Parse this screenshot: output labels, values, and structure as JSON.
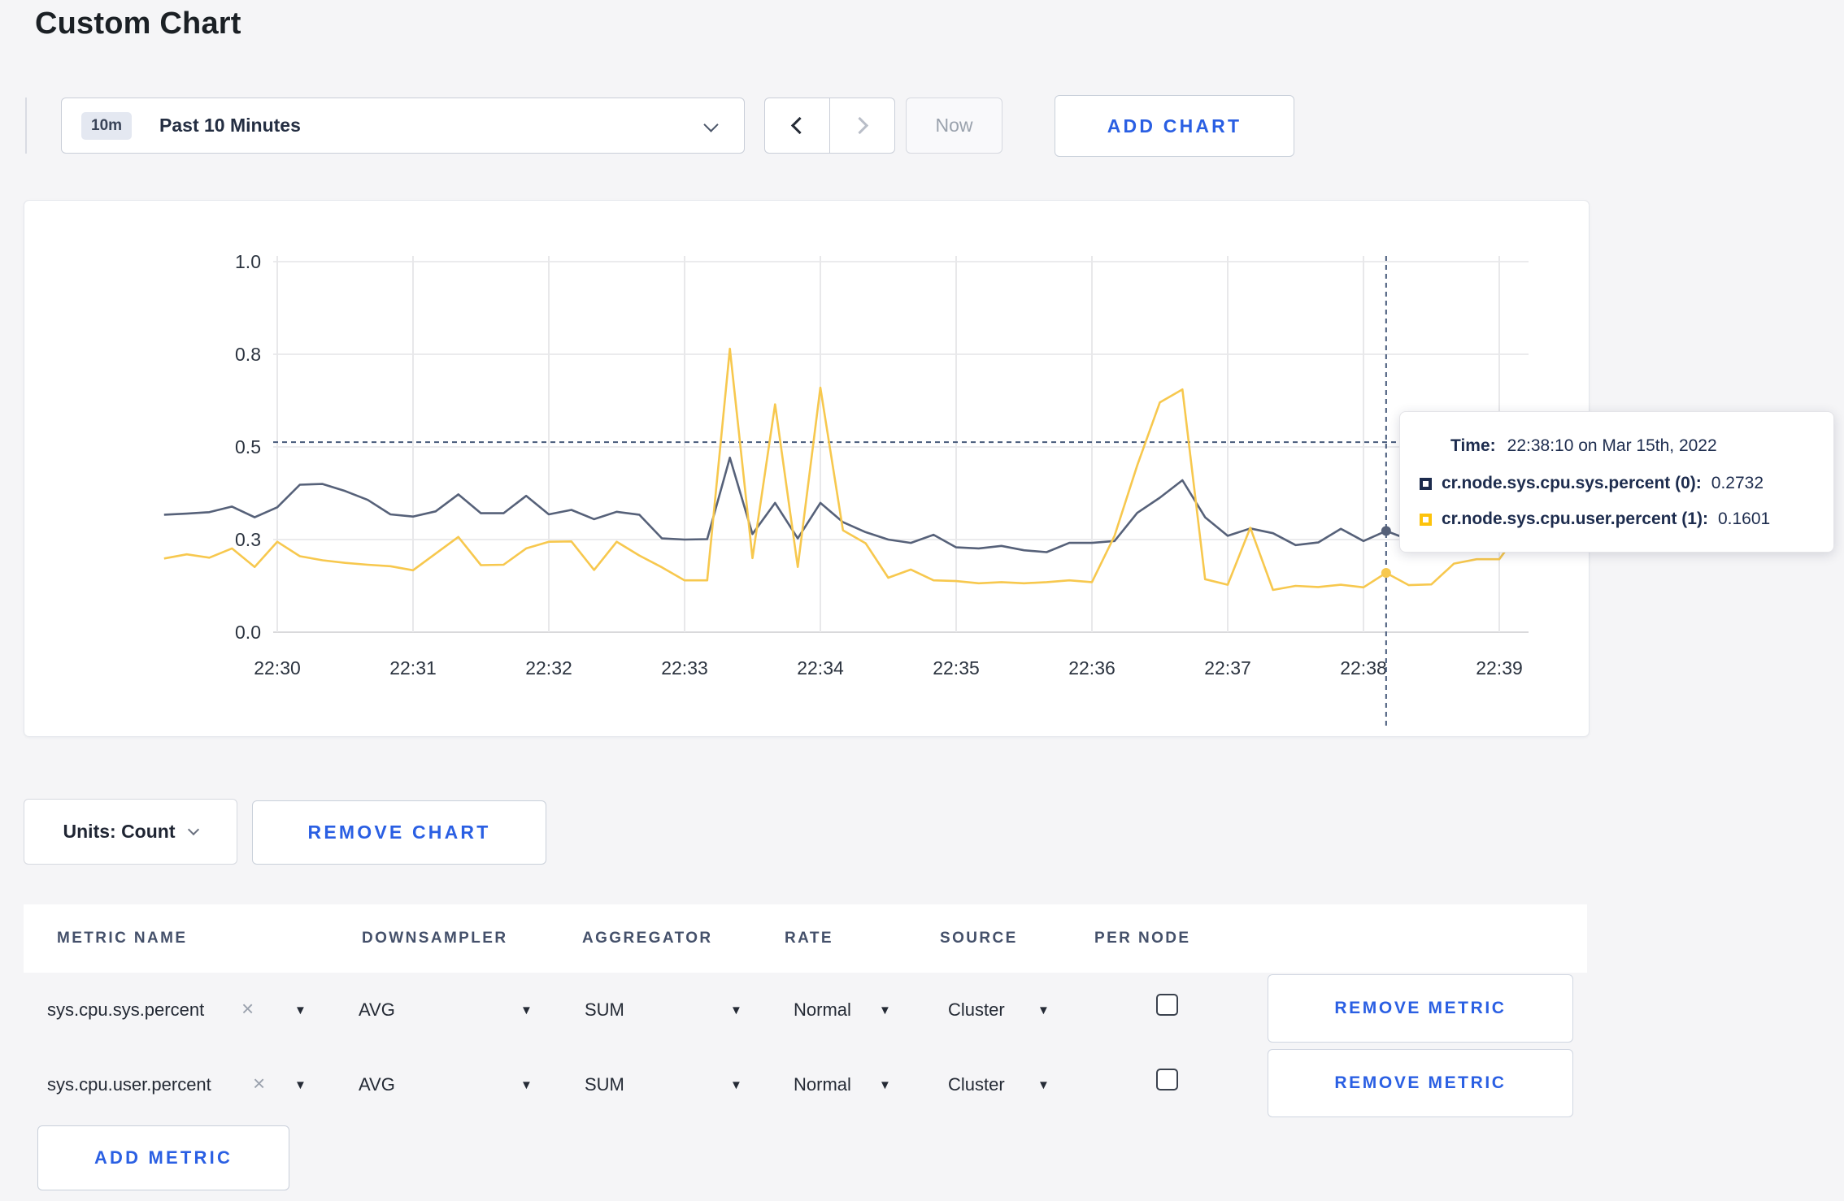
{
  "page": {
    "title": "Custom Chart"
  },
  "toolbar": {
    "time_window_badge": "10m",
    "time_window_label": "Past 10 Minutes",
    "now_label": "Now",
    "add_chart_label": "ADD CHART",
    "icons": {
      "time_dropdown": "chevron-down",
      "prev": "chevron-left",
      "next": "chevron-right"
    }
  },
  "tooltip": {
    "time_label": "Time:",
    "time_value": "22:38:10 on Mar 15th, 2022",
    "series": [
      {
        "name": "cr.node.sys.cpu.sys.percent (0):",
        "value": "0.2732",
        "color": "#1c2b4d"
      },
      {
        "name": "cr.node.sys.cpu.user.percent (1):",
        "value": "0.1601",
        "color": "#fdc30b"
      }
    ]
  },
  "chart_controls": {
    "units_label": "Units: Count",
    "remove_chart_label": "REMOVE CHART"
  },
  "metrics_table": {
    "headers": [
      "METRIC NAME",
      "DOWNSAMPLER",
      "AGGREGATOR",
      "RATE",
      "SOURCE",
      "PER NODE"
    ],
    "clear_icon": "×",
    "select_caret_icon": "▼",
    "rows": [
      {
        "metric": "sys.cpu.sys.percent",
        "downsampler": "AVG",
        "aggregator": "SUM",
        "rate": "Normal",
        "source": "Cluster",
        "per_node": false,
        "remove_label": "REMOVE METRIC"
      },
      {
        "metric": "sys.cpu.user.percent",
        "downsampler": "AVG",
        "aggregator": "SUM",
        "rate": "Normal",
        "source": "Cluster",
        "per_node": false,
        "remove_label": "REMOVE METRIC"
      }
    ],
    "add_metric_label": "ADD METRIC"
  },
  "chart_data": {
    "type": "line",
    "title": "",
    "xlabel": "",
    "ylabel": "",
    "ylim": [
      0,
      1
    ],
    "grid": true,
    "x_ticks": [
      "22:30",
      "22:31",
      "22:32",
      "22:33",
      "22:34",
      "22:35",
      "22:36",
      "22:37",
      "22:38",
      "22:39"
    ],
    "y_ticks": [
      {
        "label": "1.0",
        "value": 1.0
      },
      {
        "label": "0.8",
        "value": 0.75
      },
      {
        "label": "0.5",
        "value": 0.5
      },
      {
        "label": "0.3",
        "value": 0.25
      },
      {
        "label": "0.0",
        "value": 0.0
      }
    ],
    "x_start": "22:29:10",
    "x_step_seconds": 10,
    "crosshair": {
      "time": "22:38:10",
      "y_value": 0.513
    },
    "series": [
      {
        "name": "cr.node.sys.cpu.sys.percent",
        "color": "#566179",
        "values": [
          0.317,
          0.32,
          0.324,
          0.339,
          0.31,
          0.337,
          0.398,
          0.4,
          0.381,
          0.357,
          0.318,
          0.312,
          0.326,
          0.372,
          0.321,
          0.321,
          0.368,
          0.318,
          0.33,
          0.305,
          0.325,
          0.317,
          0.253,
          0.25,
          0.251,
          0.471,
          0.265,
          0.349,
          0.253,
          0.349,
          0.297,
          0.27,
          0.25,
          0.241,
          0.263,
          0.229,
          0.226,
          0.233,
          0.221,
          0.216,
          0.241,
          0.241,
          0.246,
          0.322,
          0.363,
          0.41,
          0.31,
          0.26,
          0.28,
          0.267,
          0.235,
          0.242,
          0.279,
          0.246,
          0.2732,
          0.25,
          0.25,
          0.26,
          0.3,
          0.31,
          0.3
        ]
      },
      {
        "name": "cr.node.sys.cpu.user.percent",
        "color": "#f7c84e",
        "values": [
          0.199,
          0.21,
          0.201,
          0.226,
          0.176,
          0.244,
          0.205,
          0.194,
          0.187,
          0.182,
          0.178,
          0.167,
          0.212,
          0.257,
          0.181,
          0.182,
          0.226,
          0.244,
          0.245,
          0.168,
          0.244,
          0.207,
          0.175,
          0.14,
          0.14,
          0.765,
          0.2,
          0.615,
          0.176,
          0.66,
          0.275,
          0.24,
          0.147,
          0.169,
          0.14,
          0.138,
          0.132,
          0.135,
          0.132,
          0.135,
          0.14,
          0.135,
          0.26,
          0.45,
          0.62,
          0.655,
          0.143,
          0.128,
          0.282,
          0.114,
          0.125,
          0.122,
          0.128,
          0.121,
          0.1601,
          0.127,
          0.129,
          0.185,
          0.197,
          0.197,
          0.28
        ]
      }
    ]
  }
}
